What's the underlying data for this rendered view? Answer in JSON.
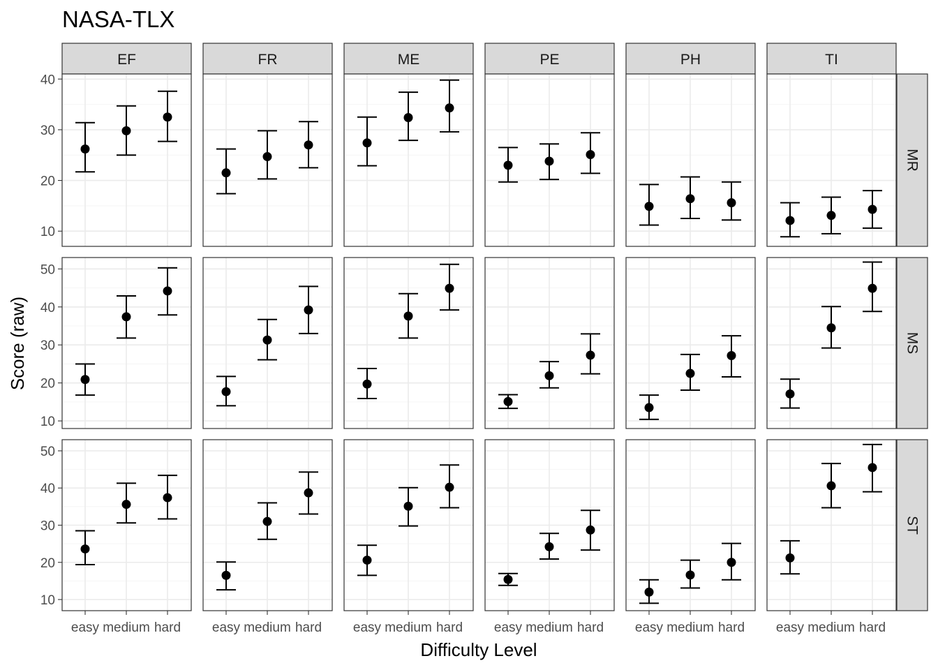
{
  "chart_data": {
    "type": "scatter",
    "geom": "point-with-errorbars",
    "title": "NASA-TLX",
    "xlabel": "Difficulty Level",
    "ylabel": "Score (raw)",
    "x_categories": [
      "easy",
      "medium",
      "hard"
    ],
    "facet_columns": [
      "EF",
      "FR",
      "ME",
      "PE",
      "PH",
      "TI"
    ],
    "facet_rows": [
      {
        "name": "MR",
        "ylim": [
          7,
          41
        ],
        "yticks": [
          10,
          20,
          30,
          40
        ],
        "data": {
          "EF": [
            {
              "mean": 26.2,
              "lo": 21.7,
              "hi": 31.4
            },
            {
              "mean": 29.8,
              "lo": 25.0,
              "hi": 34.7
            },
            {
              "mean": 32.5,
              "lo": 27.7,
              "hi": 37.6
            }
          ],
          "FR": [
            {
              "mean": 21.5,
              "lo": 17.4,
              "hi": 26.2
            },
            {
              "mean": 24.7,
              "lo": 20.3,
              "hi": 29.8
            },
            {
              "mean": 27.0,
              "lo": 22.5,
              "hi": 31.6
            }
          ],
          "ME": [
            {
              "mean": 27.4,
              "lo": 22.9,
              "hi": 32.5
            },
            {
              "mean": 32.4,
              "lo": 27.9,
              "hi": 37.4
            },
            {
              "mean": 34.3,
              "lo": 29.6,
              "hi": 39.8
            }
          ],
          "PE": [
            {
              "mean": 23.0,
              "lo": 19.7,
              "hi": 26.5
            },
            {
              "mean": 23.8,
              "lo": 20.2,
              "hi": 27.2
            },
            {
              "mean": 25.1,
              "lo": 21.4,
              "hi": 29.4
            }
          ],
          "PH": [
            {
              "mean": 14.9,
              "lo": 11.2,
              "hi": 19.2
            },
            {
              "mean": 16.4,
              "lo": 12.5,
              "hi": 20.7
            },
            {
              "mean": 15.6,
              "lo": 12.2,
              "hi": 19.7
            }
          ],
          "TI": [
            {
              "mean": 12.1,
              "lo": 8.9,
              "hi": 15.6
            },
            {
              "mean": 13.1,
              "lo": 9.5,
              "hi": 16.7
            },
            {
              "mean": 14.3,
              "lo": 10.6,
              "hi": 18.0
            }
          ]
        }
      },
      {
        "name": "MS",
        "ylim": [
          8,
          53
        ],
        "yticks": [
          10,
          20,
          30,
          40,
          50
        ],
        "data": {
          "EF": [
            {
              "mean": 20.9,
              "lo": 16.8,
              "hi": 25.0
            },
            {
              "mean": 37.4,
              "lo": 31.8,
              "hi": 42.9
            },
            {
              "mean": 44.2,
              "lo": 37.9,
              "hi": 50.3
            }
          ],
          "FR": [
            {
              "mean": 17.7,
              "lo": 14.0,
              "hi": 21.7
            },
            {
              "mean": 31.3,
              "lo": 26.1,
              "hi": 36.7
            },
            {
              "mean": 39.2,
              "lo": 33.0,
              "hi": 45.4
            }
          ],
          "ME": [
            {
              "mean": 19.7,
              "lo": 15.9,
              "hi": 23.8
            },
            {
              "mean": 37.6,
              "lo": 31.8,
              "hi": 43.5
            },
            {
              "mean": 44.9,
              "lo": 39.2,
              "hi": 51.2
            }
          ],
          "PE": [
            {
              "mean": 15.1,
              "lo": 13.3,
              "hi": 16.9
            },
            {
              "mean": 21.9,
              "lo": 18.7,
              "hi": 25.6
            },
            {
              "mean": 27.3,
              "lo": 22.4,
              "hi": 32.9
            }
          ],
          "PH": [
            {
              "mean": 13.5,
              "lo": 10.4,
              "hi": 16.8
            },
            {
              "mean": 22.5,
              "lo": 18.1,
              "hi": 27.5
            },
            {
              "mean": 27.2,
              "lo": 21.6,
              "hi": 32.4
            }
          ],
          "TI": [
            {
              "mean": 17.1,
              "lo": 13.4,
              "hi": 21.0
            },
            {
              "mean": 34.5,
              "lo": 29.2,
              "hi": 40.1
            },
            {
              "mean": 44.9,
              "lo": 38.8,
              "hi": 51.8
            }
          ]
        }
      },
      {
        "name": "ST",
        "ylim": [
          7,
          53
        ],
        "yticks": [
          10,
          20,
          30,
          40,
          50
        ],
        "data": {
          "EF": [
            {
              "mean": 23.6,
              "lo": 19.4,
              "hi": 28.5
            },
            {
              "mean": 35.6,
              "lo": 30.6,
              "hi": 41.3
            },
            {
              "mean": 37.4,
              "lo": 31.7,
              "hi": 43.4
            }
          ],
          "FR": [
            {
              "mean": 16.5,
              "lo": 12.6,
              "hi": 20.1
            },
            {
              "mean": 31.0,
              "lo": 26.2,
              "hi": 36.0
            },
            {
              "mean": 38.7,
              "lo": 33.0,
              "hi": 44.3
            }
          ],
          "ME": [
            {
              "mean": 20.6,
              "lo": 16.5,
              "hi": 24.6
            },
            {
              "mean": 35.1,
              "lo": 29.8,
              "hi": 40.1
            },
            {
              "mean": 40.2,
              "lo": 34.7,
              "hi": 46.2
            }
          ],
          "PE": [
            {
              "mean": 15.4,
              "lo": 13.8,
              "hi": 17.0
            },
            {
              "mean": 24.2,
              "lo": 20.9,
              "hi": 27.8
            },
            {
              "mean": 28.7,
              "lo": 23.3,
              "hi": 34.0
            }
          ],
          "PH": [
            {
              "mean": 12.0,
              "lo": 9.0,
              "hi": 15.3
            },
            {
              "mean": 16.6,
              "lo": 13.1,
              "hi": 20.6
            },
            {
              "mean": 20.0,
              "lo": 15.3,
              "hi": 25.1
            }
          ],
          "TI": [
            {
              "mean": 21.2,
              "lo": 16.9,
              "hi": 25.8
            },
            {
              "mean": 40.6,
              "lo": 34.7,
              "hi": 46.6
            },
            {
              "mean": 45.5,
              "lo": 39.0,
              "hi": 51.7
            }
          ]
        }
      }
    ],
    "grid": true,
    "legend": "none",
    "colors": {
      "points": "#000000",
      "strip_fill": "#d9d9d9",
      "panel_border": "#333333",
      "grid_major": "#ebebeb",
      "grid_minor": "#f5f5f5"
    }
  }
}
